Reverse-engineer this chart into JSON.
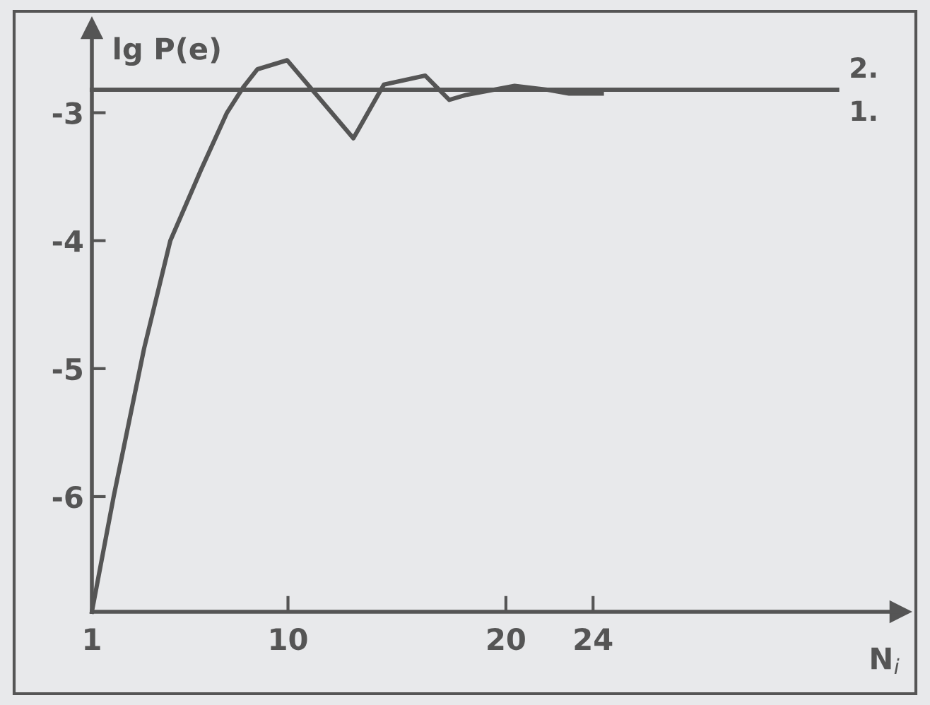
{
  "chart_data": {
    "type": "line",
    "ylabel": "lg P(e)",
    "xlabel": "N$_{i}$",
    "xlim": [
      1,
      38.1
    ],
    "ylim": [
      -6.9,
      -2.34
    ],
    "xticks": [
      1,
      10,
      20,
      24
    ],
    "yticks": [
      -3,
      -4,
      -5,
      -6
    ],
    "annotations": [
      "2.",
      "1."
    ],
    "grid": false,
    "legend": false,
    "marker": "none",
    "line_style": "solid",
    "series": [
      {
        "color": "#555555",
        "x": [
          1,
          35.2
        ],
        "values": [
          -2.82,
          -2.82
        ]
      },
      {
        "color": "#555555",
        "x": [
          1,
          2.0,
          3.4,
          4.6,
          6.0,
          7.2,
          7.95,
          8.6,
          9.96,
          13.0,
          14.4,
          16.3,
          17.4,
          18.2,
          20.4,
          21.9,
          22.9,
          24.4
        ],
        "values": [
          -6.9,
          -6.0,
          -4.84,
          -4.0,
          -3.45,
          -3.0,
          -2.8,
          -2.66,
          -2.59,
          -3.2,
          -2.78,
          -2.71,
          -2.9,
          -2.86,
          -2.79,
          -2.82,
          -2.85,
          -2.85
        ]
      }
    ]
  }
}
